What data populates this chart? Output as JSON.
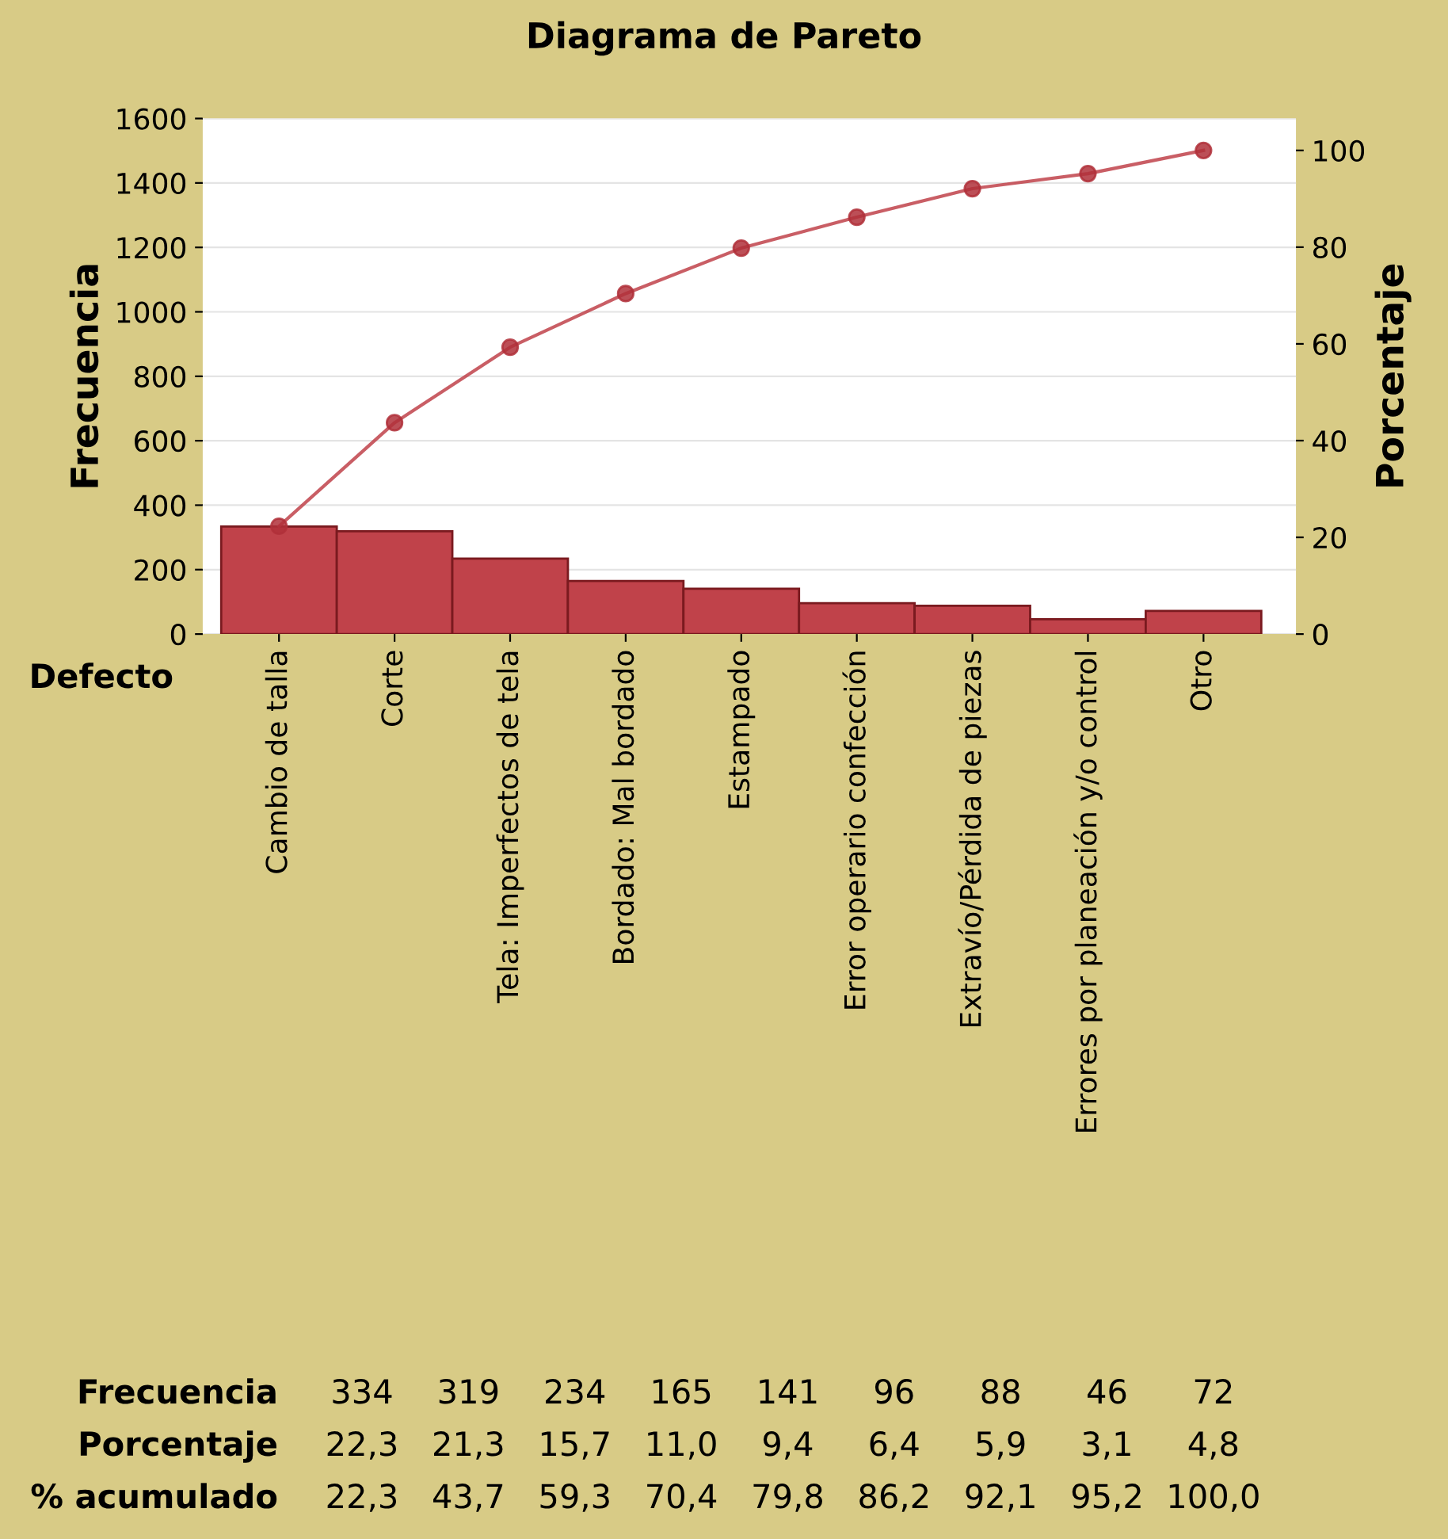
{
  "chart_data": {
    "type": "bar",
    "title": "Diagrama de Pareto",
    "xlabel": "Defecto",
    "ylabel": "Frecuencia",
    "y2label": "Porcentaje",
    "categories": [
      "Cambio de talla",
      "Corte",
      "Tela: Imperfectos de tela",
      "Bordado: Mal bordado",
      "Estampado",
      "Error operario confección",
      "Extravío/Pérdida de piezas",
      "Errores por planeación y/o control",
      "Otro"
    ],
    "series": [
      {
        "color": "#c0424a",
        "values": [
          334,
          319,
          234,
          165,
          141,
          96,
          88,
          46,
          72
        ]
      },
      {
        "type": "line",
        "axis": "y2",
        "color": "#c0424a",
        "values": [
          22.3,
          43.7,
          59.3,
          70.4,
          79.8,
          86.2,
          92.1,
          95.2,
          100.0
        ]
      }
    ],
    "annotations": [
      "Frecuencia",
      "Porcentaje",
      "% acumulado",
      "334",
      "319",
      "234",
      "165",
      "141",
      "96",
      "88",
      "46",
      "72",
      "22,3",
      "21,3",
      "15,7",
      "11,0",
      "9,4",
      "6,4",
      "5,9",
      "3,1",
      "4,8",
      "22,3",
      "43,7",
      "59,3",
      "70,4",
      "79,8",
      "86,2",
      "92,1",
      "95,2",
      "100,0"
    ],
    "ylim": [
      0,
      1600
    ],
    "yticks": [
      0,
      200,
      400,
      600,
      800,
      1000,
      1200,
      1400,
      1600
    ],
    "y2lim": [
      0,
      106.6
    ],
    "y2ticks": [
      0,
      20,
      40,
      60,
      80,
      100
    ],
    "grid": "y",
    "marker": "circle",
    "line_style": "solid",
    "legend": false
  }
}
